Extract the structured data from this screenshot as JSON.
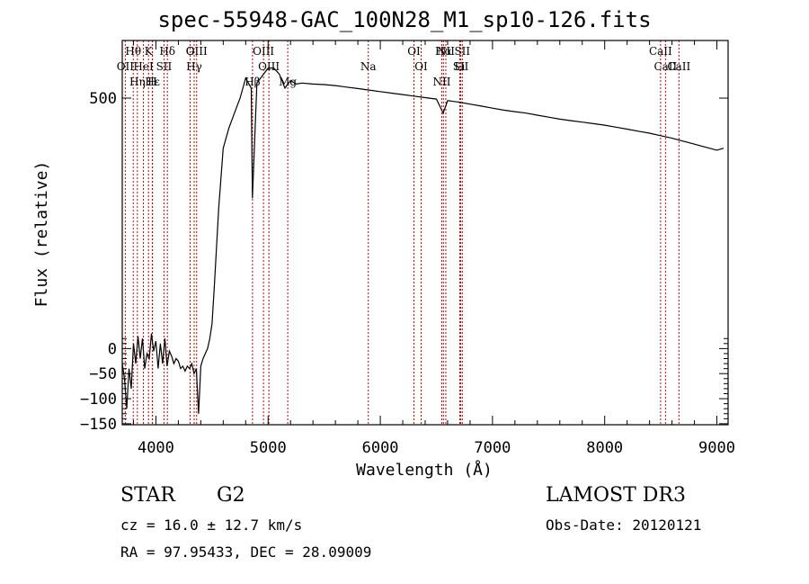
{
  "header": {
    "title": "spec-55948-GAC_100N28_M1_sp10-126.fits"
  },
  "info": {
    "object_class": "STAR",
    "subclass": "G2",
    "survey": "LAMOST DR3",
    "redshift_line": "cz = 16.0 ± 12.7 km/s",
    "obs_date_line": "Obs-Date: 20120121",
    "coords_line": "RA =  97.95433, DEC =  28.09009"
  },
  "chart_data": {
    "type": "line",
    "title": "spec-55948-GAC_100N28_M1_sp10-126.fits",
    "xlabel": "Wavelength (Å)",
    "ylabel": "Flux (relative)",
    "xlim": [
      3700,
      9100
    ],
    "ylim": [
      -152,
      615
    ],
    "xticks": [
      4000,
      5000,
      6000,
      7000,
      8000,
      9000
    ],
    "yticks": [
      -150,
      -100,
      -50,
      0,
      500
    ],
    "ytick_labels": [
      "−150",
      "−100",
      "−50",
      "0",
      "500"
    ],
    "grid": false,
    "line_color": "#000000",
    "marker_color": "#cc0000",
    "series": [
      {
        "name": "spectrum",
        "x": [
          3700,
          3720,
          3740,
          3760,
          3780,
          3800,
          3820,
          3840,
          3860,
          3880,
          3900,
          3920,
          3940,
          3960,
          3980,
          4000,
          4020,
          4040,
          4060,
          4080,
          4100,
          4120,
          4140,
          4160,
          4180,
          4200,
          4220,
          4240,
          4260,
          4280,
          4300,
          4320,
          4340,
          4360,
          4380,
          4400,
          4420,
          4440,
          4460,
          4480,
          4500,
          4520,
          4540,
          4560,
          4580,
          4600,
          4650,
          4700,
          4750,
          4800,
          4850,
          4860,
          4900,
          4950,
          5000,
          5050,
          5100,
          5150,
          5200,
          5250,
          5300,
          5400,
          5500,
          5600,
          5700,
          5800,
          5900,
          6000,
          6100,
          6200,
          6300,
          6400,
          6500,
          6560,
          6600,
          6700,
          6800,
          6900,
          7000,
          7100,
          7200,
          7300,
          7400,
          7500,
          7600,
          7700,
          7800,
          7900,
          8000,
          8100,
          8200,
          8300,
          8400,
          8500,
          8600,
          8700,
          8800,
          8900,
          9000,
          9060
        ],
        "y": [
          -30,
          -60,
          -120,
          -40,
          -80,
          10,
          -30,
          25,
          -20,
          20,
          -40,
          -10,
          -20,
          30,
          -5,
          15,
          -40,
          10,
          -30,
          20,
          -35,
          -5,
          -15,
          -30,
          -20,
          -25,
          -40,
          -35,
          -45,
          -35,
          -40,
          -30,
          -50,
          -40,
          -130,
          -35,
          -20,
          -10,
          0,
          20,
          50,
          120,
          200,
          280,
          340,
          400,
          440,
          470,
          500,
          540,
          520,
          300,
          530,
          545,
          560,
          560,
          548,
          520,
          535,
          528,
          530,
          528,
          527,
          525,
          522,
          519,
          516,
          513,
          510,
          507,
          504,
          501,
          498,
          470,
          495,
          492,
          488,
          484,
          480,
          476,
          473,
          470,
          466,
          462,
          458,
          455,
          452,
          449,
          446,
          442,
          438,
          434,
          430,
          425,
          420,
          414,
          408,
          402,
          396,
          400
        ]
      }
    ],
    "lines_top": [
      {
        "label": "Hθ",
        "x": 3798
      },
      {
        "label": "OII",
        "x": 3727
      },
      {
        "label": "K",
        "x": 3934
      },
      {
        "label": "HeI",
        "x": 3889
      },
      {
        "label": "Hδ",
        "x": 4102
      },
      {
        "label": "SII",
        "x": 4072
      },
      {
        "label": "OIII",
        "x": 4363
      },
      {
        "label": "Hγ",
        "x": 4341
      },
      {
        "label": "G",
        "x": 4305
      },
      {
        "label": "OIII",
        "x": 5007
      },
      {
        "label": "OIII",
        "x": 4959
      },
      {
        "label": "Na",
        "x": 5893
      },
      {
        "label": "OI",
        "x": 6300
      },
      {
        "label": "OI",
        "x": 6364
      },
      {
        "label": "Hα",
        "x": 6563
      },
      {
        "label": "SII",
        "x": 6717
      },
      {
        "label": "NII",
        "x": 6584
      },
      {
        "label": "Li",
        "x": 6708
      },
      {
        "label": "SII",
        "x": 6731
      },
      {
        "label": "CaII",
        "x": 8542
      },
      {
        "label": "CaII",
        "x": 8498
      },
      {
        "label": "CaII",
        "x": 8662
      }
    ],
    "lines_bottom": [
      {
        "label": "Hε",
        "x": 3970
      },
      {
        "label": "H",
        "x": 3968
      },
      {
        "label": "Hη",
        "x": 3835
      },
      {
        "label": "Hβ",
        "x": 4861
      },
      {
        "label": "Mg",
        "x": 5175
      },
      {
        "label": "NII",
        "x": 6548
      }
    ]
  }
}
